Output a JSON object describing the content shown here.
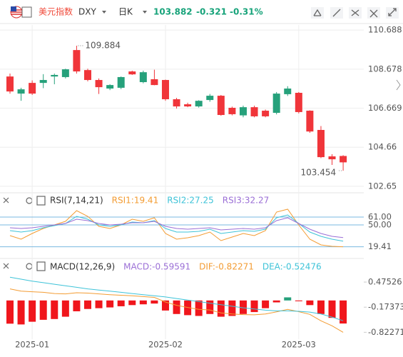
{
  "header": {
    "title": "美元指数",
    "symbol": "DXY",
    "period": "日K",
    "price": "103.882",
    "change": "-0.321",
    "change_pct": "-0.31%"
  },
  "chart_data": [
    {
      "type": "candlestick",
      "up_color": "#26a17b",
      "down_color": "#f0353a",
      "categories": [
        null,
        null,
        "2025-01",
        null,
        null,
        null,
        null,
        null,
        null,
        null,
        null,
        null,
        null,
        null,
        "2025-02",
        null,
        null,
        null,
        null,
        null,
        null,
        null,
        null,
        null,
        null,
        null,
        "2025-03",
        null,
        null,
        null,
        null
      ],
      "open": [
        108.3,
        107.42,
        107.97,
        107.97,
        108.3,
        108.27,
        109.66,
        108.63,
        108.12,
        107.68,
        107.72,
        108.56,
        108.01,
        108.16,
        108.12,
        107.13,
        106.87,
        106.76,
        107.09,
        107.31,
        106.69,
        106.3,
        106.72,
        106.54,
        106.43,
        107.39,
        107.46,
        106.54,
        105.55,
        104.19,
        104.21
      ],
      "high": [
        108.45,
        107.72,
        108.1,
        108.42,
        108.45,
        108.7,
        109.884,
        108.7,
        108.2,
        107.9,
        108.3,
        108.6,
        108.6,
        108.65,
        108.14,
        107.2,
        106.95,
        107.08,
        107.4,
        107.35,
        106.75,
        106.8,
        106.8,
        106.6,
        107.5,
        107.8,
        107.5,
        106.56,
        105.75,
        104.3,
        104.25
      ],
      "low": [
        107.42,
        107.05,
        107.35,
        107.7,
        107.9,
        108.2,
        108.45,
        108.05,
        107.4,
        107.6,
        107.65,
        108.38,
        107.95,
        107.85,
        107.05,
        106.65,
        106.72,
        106.7,
        107.0,
        106.28,
        106.3,
        106.2,
        106.2,
        106.2,
        106.35,
        107.3,
        106.4,
        105.4,
        104.1,
        103.75,
        103.454
      ],
      "close": [
        107.53,
        107.64,
        107.42,
        108.12,
        108.38,
        108.67,
        108.56,
        108.12,
        107.75,
        107.86,
        108.27,
        108.41,
        108.52,
        107.86,
        107.13,
        106.76,
        106.76,
        107.05,
        107.31,
        106.32,
        106.36,
        106.72,
        106.25,
        106.25,
        107.42,
        107.68,
        106.47,
        105.47,
        104.15,
        104.04,
        103.882
      ],
      "high_mark": 6,
      "low_mark": 30,
      "ylim": [
        102.39,
        110.95
      ],
      "yticks": [
        110.688,
        108.678,
        106.669,
        104.66,
        102.65
      ],
      "grid": true
    },
    {
      "type": "line",
      "title": "RSI(7,14,21)",
      "series": [
        {
          "name": "RSI1:19.41",
          "color": "#f39c33",
          "values": [
            35,
            30,
            38,
            45,
            50,
            55,
            70,
            62,
            48,
            45,
            50,
            58,
            55,
            60,
            38,
            30,
            32,
            35,
            40,
            28,
            33,
            38,
            35,
            42,
            68,
            72,
            50,
            30,
            22,
            20,
            19.41
          ]
        },
        {
          "name": "RSI2:27.25",
          "color": "#3ec3d8",
          "values": [
            42,
            40,
            42,
            46,
            49,
            52,
            62,
            58,
            50,
            48,
            50,
            54,
            53,
            56,
            45,
            40,
            40,
            41,
            44,
            38,
            40,
            42,
            41,
            44,
            60,
            64,
            52,
            40,
            34,
            30,
            27.25
          ]
        },
        {
          "name": "RSI3:32.27",
          "color": "#9b6fd6",
          "values": [
            46,
            45,
            46,
            48,
            50,
            52,
            58,
            56,
            52,
            50,
            51,
            53,
            53,
            55,
            48,
            45,
            44,
            45,
            46,
            43,
            44,
            45,
            44,
            46,
            56,
            60,
            52,
            44,
            38,
            34,
            32.27
          ]
        }
      ],
      "ylim": [
        5,
        75
      ],
      "yticks": [
        {
          "value": 61,
          "label": "61.00"
        },
        {
          "value": 50,
          "label": "50.00"
        },
        19.41
      ],
      "grid": true
    },
    {
      "type": "macd",
      "title": "MACD(12,26,9)",
      "up_color": "#26a17b",
      "down_color": "#f0161c",
      "series": [
        {
          "name": "MACD:-0.59591",
          "color": "#9b6fd6",
          "values": [
            -0.6,
            -0.62,
            -0.55,
            -0.5,
            -0.48,
            -0.42,
            -0.28,
            -0.22,
            -0.2,
            -0.18,
            -0.15,
            -0.12,
            -0.1,
            -0.08,
            -0.26,
            -0.35,
            -0.38,
            -0.4,
            -0.35,
            -0.42,
            -0.4,
            -0.35,
            -0.3,
            -0.2,
            -0.05,
            0.08,
            -0.02,
            -0.12,
            -0.35,
            -0.45,
            -0.59591
          ]
        },
        {
          "name": "DIF:-0.82271",
          "color": "#f39c33",
          "values": [
            0.3,
            0.24,
            0.225,
            0.21,
            0.18,
            0.17,
            0.2,
            0.19,
            0.17,
            0.15,
            0.135,
            0.12,
            0.1,
            0.08,
            -0.04,
            -0.125,
            -0.18,
            -0.23,
            -0.245,
            -0.32,
            -0.35,
            -0.365,
            -0.37,
            -0.35,
            -0.295,
            -0.23,
            -0.29,
            -0.36,
            -0.525,
            -0.655,
            -0.82271
          ]
        },
        {
          "name": "DEA:-0.52476",
          "color": "#3ec3d8",
          "values": [
            0.6,
            0.55,
            0.5,
            0.46,
            0.42,
            0.38,
            0.34,
            0.3,
            0.27,
            0.24,
            0.21,
            0.18,
            0.15,
            0.12,
            0.09,
            0.05,
            0.01,
            -0.03,
            -0.07,
            -0.11,
            -0.15,
            -0.19,
            -0.22,
            -0.25,
            -0.27,
            -0.27,
            -0.28,
            -0.3,
            -0.35,
            -0.43,
            -0.52476
          ]
        }
      ],
      "ylim": [
        -1.0,
        0.79
      ],
      "yticks": [
        0.47526,
        -0.17373,
        -0.82271
      ],
      "grid": false
    }
  ]
}
